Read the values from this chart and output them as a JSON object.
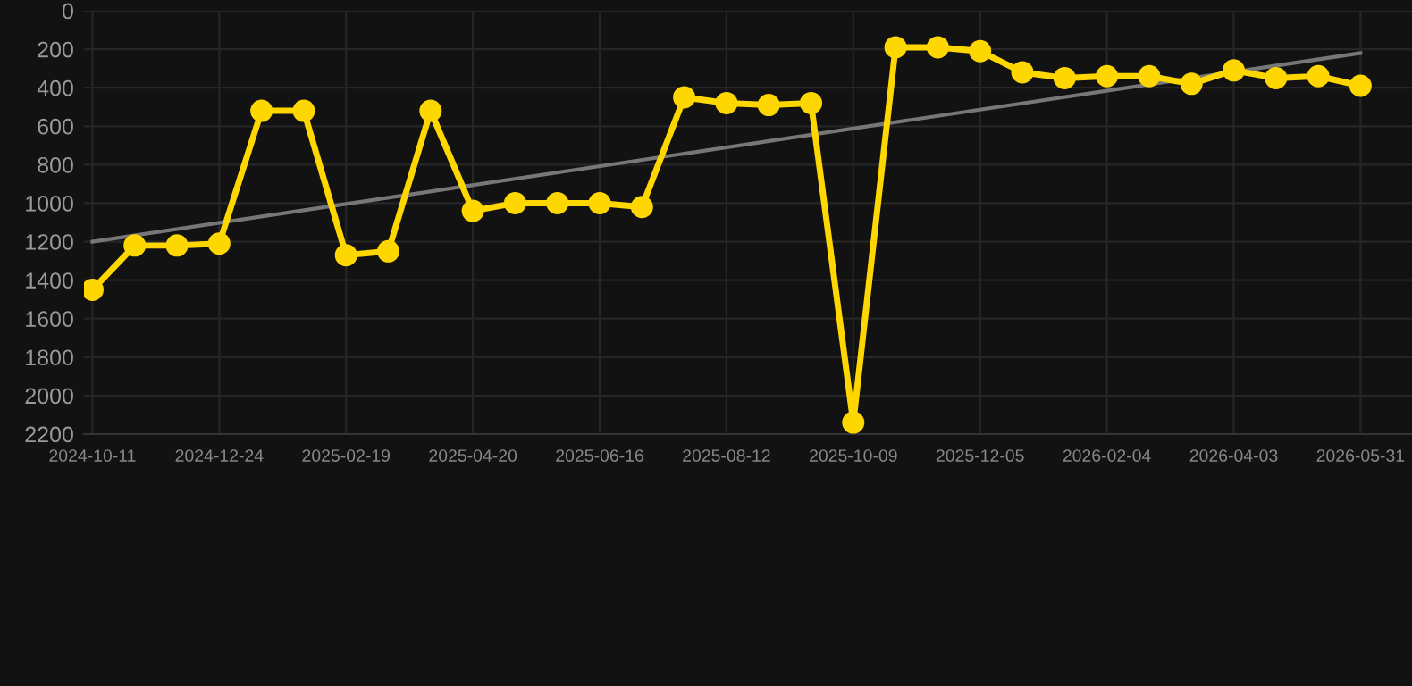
{
  "chart_data": {
    "type": "line",
    "categories": [
      "2024-10-11",
      null,
      null,
      "2024-12-24",
      null,
      null,
      "2025-02-19",
      null,
      null,
      "2025-04-20",
      null,
      null,
      "2025-06-16",
      null,
      null,
      "2025-08-12",
      null,
      null,
      "2025-10-09",
      null,
      null,
      "2025-12-05",
      null,
      null,
      "2026-02-04",
      null,
      null,
      "2026-04-03",
      null,
      null,
      "2026-05-31"
    ],
    "series": [
      {
        "color": "#ffd700",
        "marker": "circle",
        "values": [
          1450,
          1220,
          1220,
          1210,
          520,
          520,
          1270,
          1250,
          520,
          1040,
          1000,
          1000,
          1000,
          1020,
          450,
          480,
          490,
          480,
          2140,
          190,
          190,
          210,
          320,
          350,
          340,
          340,
          380,
          310,
          350,
          340,
          390
        ]
      },
      {
        "color": "#777777",
        "marker": "none",
        "values": [
          1200,
          null,
          null,
          null,
          null,
          null,
          null,
          null,
          null,
          null,
          null,
          null,
          null,
          null,
          null,
          null,
          null,
          null,
          null,
          null,
          null,
          null,
          null,
          null,
          null,
          null,
          null,
          null,
          null,
          null,
          220
        ]
      }
    ],
    "ylim": [
      2200,
      0
    ],
    "yticks": [
      0,
      200,
      400,
      600,
      800,
      1000,
      1200,
      1400,
      1600,
      1800,
      2000,
      2200
    ],
    "grid": true,
    "line_style": "solid"
  }
}
